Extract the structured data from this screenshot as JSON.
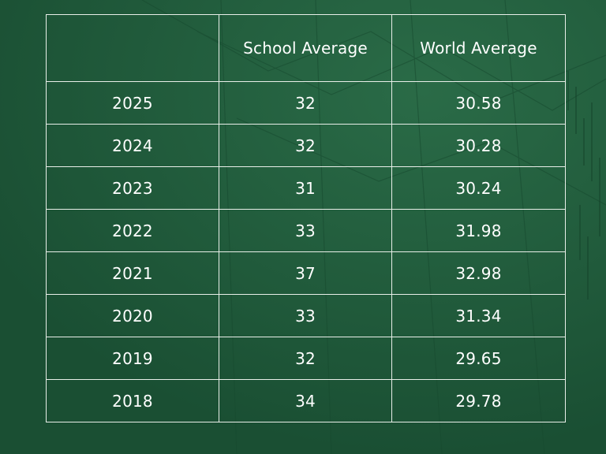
{
  "chart_data": {
    "type": "table",
    "columns": [
      "",
      "School Average",
      "World Average"
    ],
    "rows": [
      {
        "year": "2025",
        "school": "32",
        "world": "30.58"
      },
      {
        "year": "2024",
        "school": "32",
        "world": "30.28"
      },
      {
        "year": "2023",
        "school": "31",
        "world": "30.24"
      },
      {
        "year": "2022",
        "school": "33",
        "world": "31.98"
      },
      {
        "year": "2021",
        "school": "37",
        "world": "32.98"
      },
      {
        "year": "2020",
        "school": "33",
        "world": "31.34"
      },
      {
        "year": "2019",
        "school": "32",
        "world": "29.65"
      },
      {
        "year": "2018",
        "school": "34",
        "world": "29.78"
      }
    ]
  },
  "colors": {
    "background": "#1f5a3a",
    "grid_lines": "#e9efe9",
    "text": "#ffffff"
  }
}
